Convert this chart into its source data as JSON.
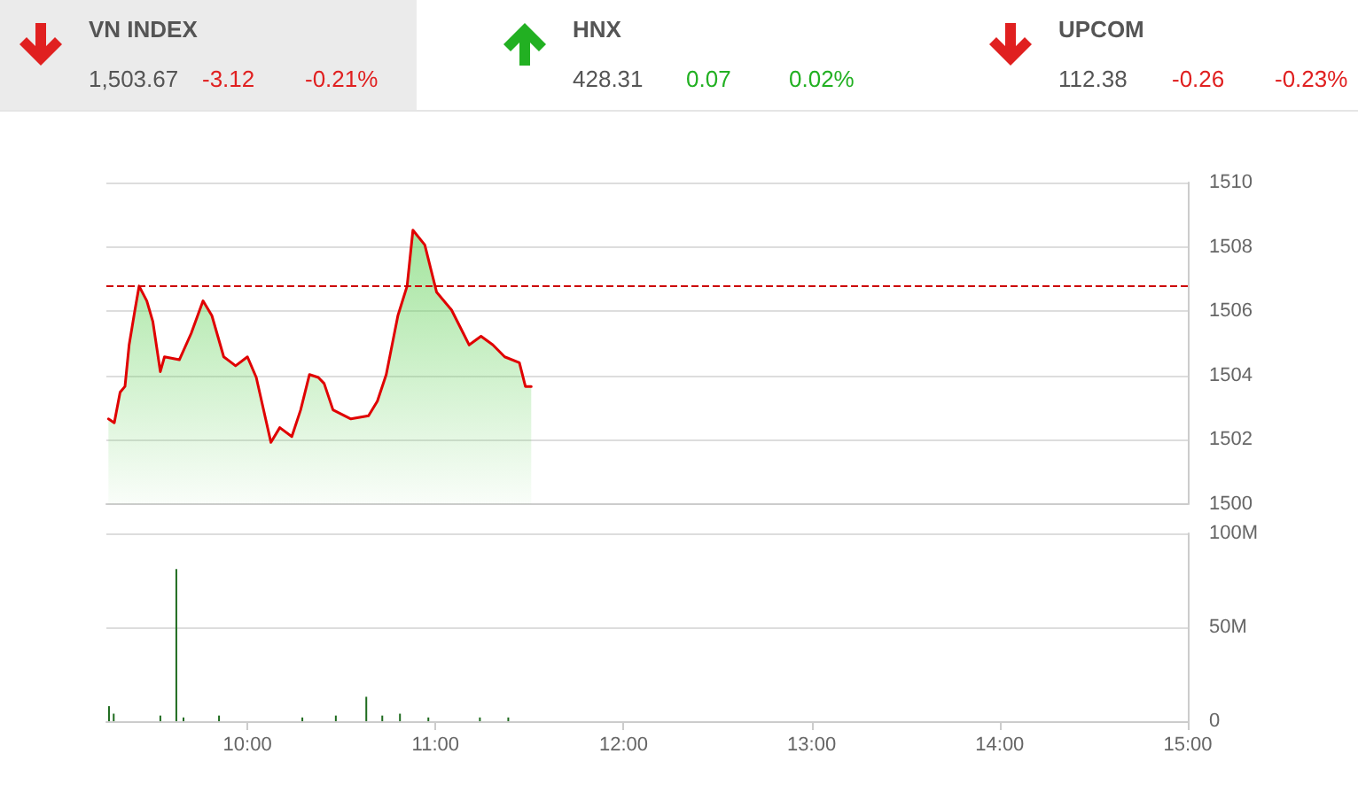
{
  "chart_data": [
    {
      "type": "other",
      "annotations": [
        "VN INDEX",
        "1,503.67",
        "-3.12",
        "-0.21%",
        "HNX",
        "428.31",
        "0.07",
        "0.02%",
        "UPCOM",
        "112.38",
        "-0.26",
        "-0.23%"
      ],
      "colors": [
        "#555555",
        "#555555",
        "#e02020",
        "#e02020",
        "#555555",
        "#555555",
        "#22b022",
        "#22b022",
        "#555555",
        "#555555",
        "#e02020",
        "#e02020"
      ]
    },
    {
      "type": "area",
      "x": [
        9.261,
        9.292,
        9.323,
        9.349,
        9.371,
        9.402,
        9.424,
        9.465,
        9.497,
        9.537,
        9.559,
        9.638,
        9.701,
        9.764,
        9.811,
        9.874,
        9.937,
        10.0,
        10.047,
        10.125,
        10.172,
        10.236,
        10.283,
        10.33,
        10.377,
        10.408,
        10.455,
        10.55,
        10.644,
        10.691,
        10.738,
        10.8,
        10.849,
        10.88,
        10.943,
        11.006,
        11.085,
        11.148,
        11.179,
        11.242,
        11.305,
        11.368,
        11.446,
        11.478,
        11.509
      ],
      "series": [
        {
          "color": "#e00000",
          "values": [
            1502.65,
            1502.53,
            1503.48,
            1503.66,
            1504.95,
            1506.04,
            1506.78,
            1506.32,
            1505.68,
            1504.12,
            1504.58,
            1504.49,
            1505.31,
            1506.32,
            1505.86,
            1504.58,
            1504.3,
            1504.58,
            1503.94,
            1501.92,
            1502.38,
            1502.1,
            1502.93,
            1504.03,
            1503.94,
            1503.75,
            1502.93,
            1502.65,
            1502.75,
            1503.2,
            1504.03,
            1505.86,
            1506.78,
            1508.52,
            1508.06,
            1506.59,
            1506.04,
            1505.31,
            1504.95,
            1505.22,
            1504.95,
            1504.58,
            1504.4,
            1503.66,
            1503.66
          ]
        }
      ],
      "xlim": [
        9.25,
        15
      ],
      "ylim": [
        1500,
        1510
      ],
      "yticks": [
        1500,
        1502,
        1504,
        1506,
        1508,
        1510
      ],
      "ref_lines": [
        {
          "axis": "y",
          "value": 1506.79,
          "color": "#cc0000",
          "line_style": "dashed"
        }
      ],
      "grid": "y",
      "tick_labels": "y",
      "marker": "none"
    },
    {
      "type": "bar",
      "x": [
        9.264,
        9.289,
        9.537,
        9.622,
        9.66,
        9.849,
        10.292,
        10.47,
        10.632,
        10.717,
        10.811,
        10.962,
        11.236,
        11.387
      ],
      "series": [
        {
          "color": "#1e6b1e",
          "values": [
            8,
            4,
            3,
            81,
            2,
            3,
            2,
            3,
            13,
            3,
            4,
            2,
            2,
            2
          ]
        }
      ],
      "xlim": [
        9.25,
        15
      ],
      "xticks": [
        {
          "value": 10,
          "label": "10:00"
        },
        {
          "value": 11,
          "label": "11:00"
        },
        {
          "value": 12,
          "label": "12:00"
        },
        {
          "value": 13,
          "label": "13:00"
        },
        {
          "value": 14,
          "label": "14:00"
        },
        {
          "value": 15,
          "label": "15:00"
        }
      ],
      "ylim": [
        0,
        100
      ],
      "yticks": [
        0,
        {
          "value": 50,
          "label": "50M"
        },
        {
          "value": 100,
          "label": "100M"
        }
      ],
      "grid": "y"
    }
  ]
}
